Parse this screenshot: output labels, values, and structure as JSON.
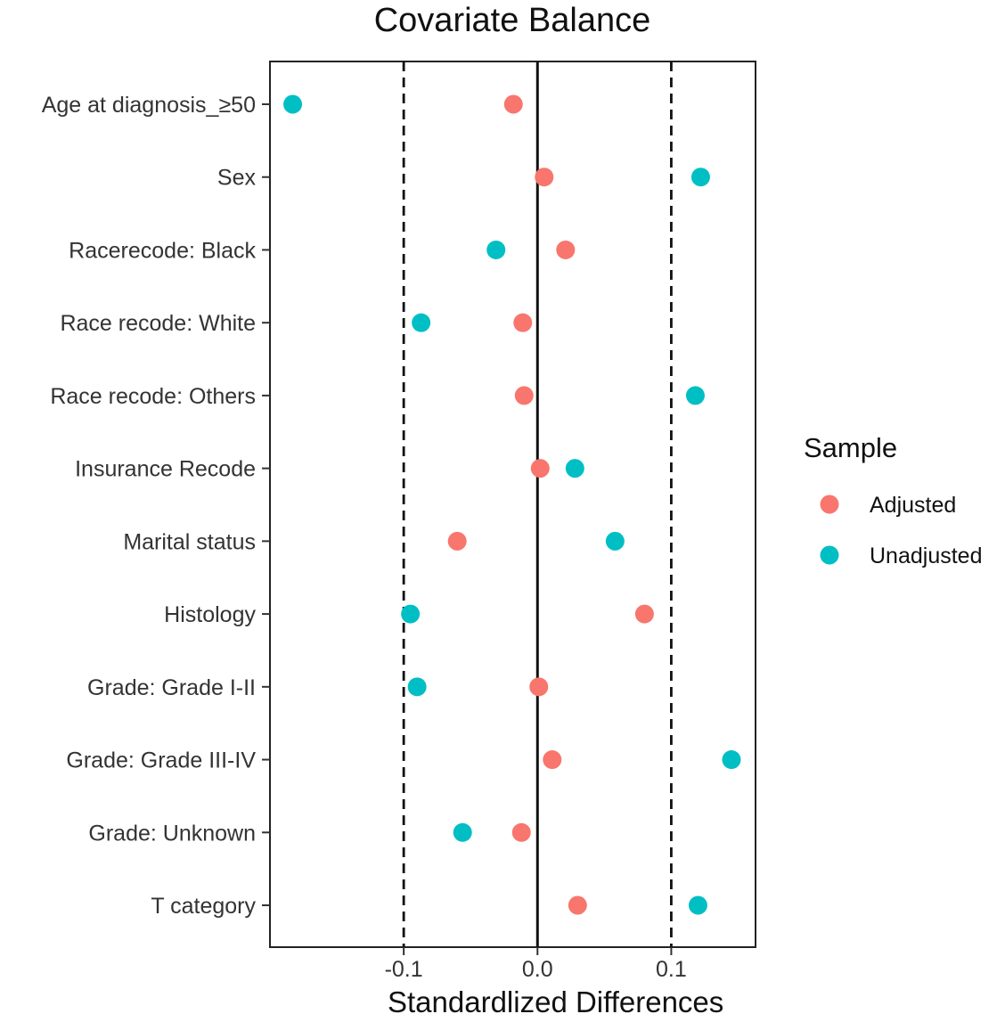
{
  "chart_data": {
    "type": "scatter",
    "title": "Covariate Balance",
    "xlabel": "Standardlized Differences",
    "ylabel": "",
    "xlim": [
      -0.2,
      0.163
    ],
    "xticks": [
      -0.1,
      0.0,
      0.1
    ],
    "xtick_labels": [
      "-0.1",
      "0.0",
      "0.1"
    ],
    "reference_lines": {
      "solid": 0.0,
      "dashed": [
        -0.1,
        0.1
      ]
    },
    "grid": false,
    "legend_position": "right",
    "legend_title": "Sample",
    "categories": [
      "Age at diagnosis_≥50",
      "Sex",
      "Racerecode: Black",
      "Race recode: White",
      "Race recode: Others",
      "Insurance Recode",
      "Marital status",
      "Histology",
      "Grade: Grade I-II",
      "Grade: Grade III-IV",
      "Grade: Unknown",
      "T category"
    ],
    "series": [
      {
        "name": "Adjusted",
        "color": "#F8766D",
        "values": [
          -0.018,
          0.005,
          0.021,
          -0.011,
          -0.01,
          0.002,
          -0.06,
          0.08,
          0.001,
          0.011,
          -0.012,
          0.03
        ]
      },
      {
        "name": "Unadjusted",
        "color": "#00BFC4",
        "values": [
          -0.183,
          0.122,
          -0.031,
          -0.087,
          0.118,
          0.028,
          0.058,
          -0.095,
          -0.09,
          0.145,
          -0.056,
          0.12
        ]
      }
    ]
  }
}
